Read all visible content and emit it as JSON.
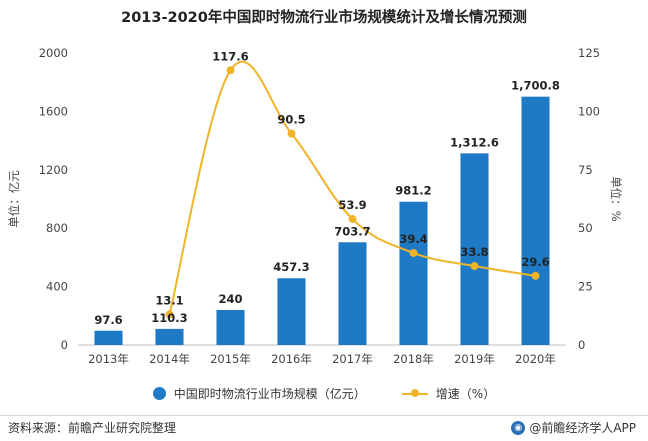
{
  "title": "2013-2020年中国即时物流行业市场规模统计及增长情况预测",
  "colors": {
    "bar": "#1f7ac6",
    "line": "#f0b429"
  },
  "chart_data": {
    "type": "bar",
    "categories": [
      "2013年",
      "2014年",
      "2015年",
      "2016年",
      "2017年",
      "2018年",
      "2019年",
      "2020年"
    ],
    "series": [
      {
        "name": "中国即时物流行业市场规模（亿元）",
        "type": "bar",
        "axis": "left",
        "values": [
          97.6,
          110.3,
          240,
          457.3,
          703.7,
          981.2,
          1312.6,
          1700.8
        ],
        "labels": [
          "97.6",
          "110.3",
          "240",
          "457.3",
          "703.7",
          "981.2",
          "1,312.6",
          "1,700.8"
        ]
      },
      {
        "name": "增速（%）",
        "type": "line",
        "axis": "right",
        "values": [
          null,
          13.1,
          117.6,
          90.5,
          53.9,
          39.4,
          33.8,
          29.6
        ],
        "labels": [
          "",
          "13.1",
          "117.6",
          "90.5",
          "53.9",
          "39.4",
          "33.8",
          "29.6"
        ]
      }
    ],
    "y_left": {
      "label": "单位：亿元",
      "min": 0,
      "max": 2000,
      "ticks": [
        0,
        400,
        800,
        1200,
        1600,
        2000
      ]
    },
    "y_right": {
      "label": "单位：%",
      "min": 0,
      "max": 125,
      "ticks": [
        0,
        25,
        50,
        75,
        100,
        125
      ]
    },
    "grid": false,
    "legend": "bottom"
  },
  "legend": {
    "bar_label": "中国即时物流行业市场规模（亿元）",
    "line_label": "增速（%）"
  },
  "footer": {
    "source": "资料来源：前瞻产业研究院整理",
    "brand": "@前瞻经济学人APP"
  }
}
